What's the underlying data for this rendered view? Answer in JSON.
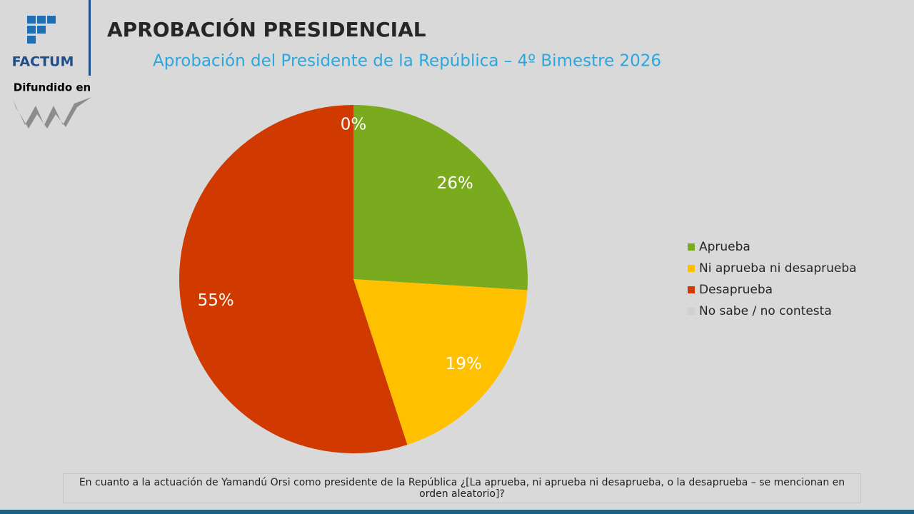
{
  "brand": {
    "name": "FACTUM",
    "caption": "Difundido en"
  },
  "chart_data": {
    "type": "pie",
    "title": "APROBACIÓN PRESIDENCIAL",
    "subtitle": "Aprobación del Presidente de la República – 4º Bimestre 2026",
    "categories": [
      "Aprueba",
      "Ni aprueba ni desaprueba",
      "Desaprueba",
      "No sabe / no contesta"
    ],
    "values": [
      26,
      19,
      55,
      0
    ],
    "value_labels": [
      "26%",
      "19%",
      "55%",
      "0%"
    ],
    "colors": [
      "#7aab1f",
      "#ffc000",
      "#d03a00",
      "#d0d0d0"
    ],
    "legend": "right"
  },
  "footnote": "En cuanto a la actuación de Yamandú Orsi como presidente de la República ¿[La aprueba, ni aprueba ni desaprueba, o la desaprueba – se mencionan en orden aleatorio]?"
}
